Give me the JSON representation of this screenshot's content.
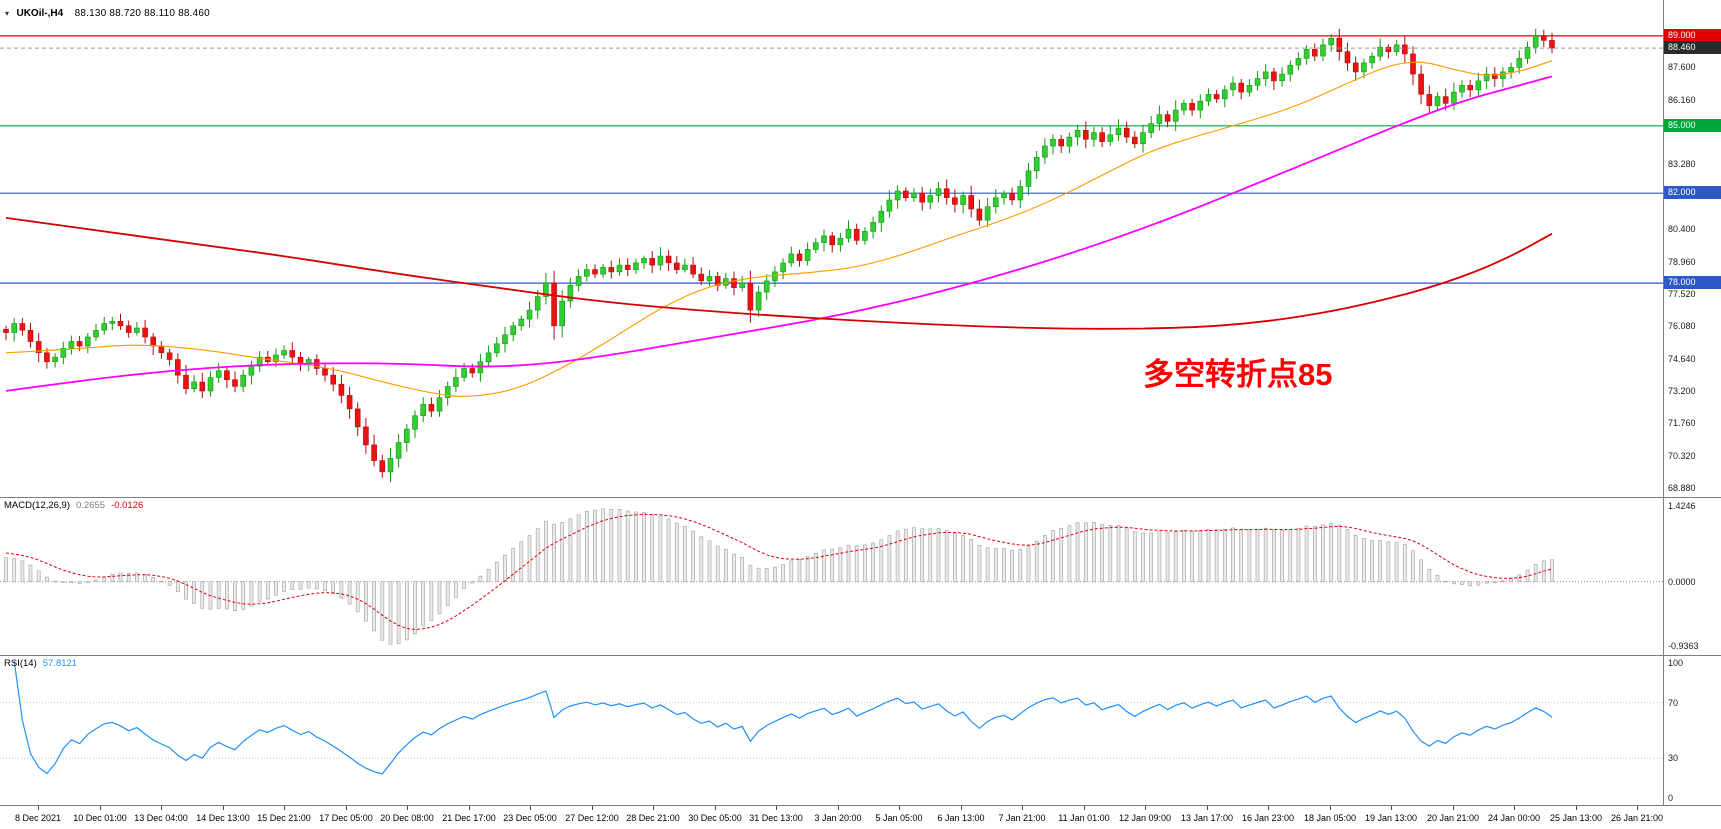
{
  "title_bar": {
    "symbol_period": "UKOil-,H4",
    "ohlc": "88.130 88.720 88.110 88.460"
  },
  "icons": {
    "dropdown": "▾"
  },
  "annotation": {
    "text": "多空转折点85",
    "color": "#ff0000"
  },
  "price_axis": {
    "ticks": [
      "87.600",
      "86.160",
      "83.280",
      "80.400",
      "78.960",
      "77.520",
      "76.080",
      "74.640",
      "73.200",
      "71.760",
      "70.320",
      "68.880"
    ],
    "badges": [
      {
        "label": "89.000",
        "value": 89.0,
        "color": "#e00000"
      },
      {
        "label": "88.460",
        "value": 88.46,
        "color": "#2b2b2b"
      },
      {
        "label": "85.000",
        "value": 85.0,
        "color": "#00a43b"
      },
      {
        "label": "82.000",
        "value": 82.0,
        "color": "#2e58c8"
      },
      {
        "label": "78.000",
        "value": 78.0,
        "color": "#2e58c8"
      }
    ]
  },
  "time_axis": {
    "labels": [
      "8 Dec 2021",
      "10 Dec 01:00",
      "13 Dec 04:00",
      "14 Dec 13:00",
      "15 Dec 21:00",
      "17 Dec 05:00",
      "20 Dec 08:00",
      "21 Dec 17:00",
      "23 Dec 05:00",
      "27 Dec 12:00",
      "28 Dec 21:00",
      "30 Dec 05:00",
      "31 Dec 13:00",
      "3 Jan 20:00",
      "5 Jan 05:00",
      "6 Jan 13:00",
      "7 Jan 21:00",
      "11 Jan 01:00",
      "12 Jan 09:00",
      "13 Jan 17:00",
      "16 Jan 23:00",
      "18 Jan 05:00",
      "19 Jan 13:00",
      "20 Jan 21:00",
      "24 Jan 00:00",
      "25 Jan 13:00",
      "26 Jan 21:00"
    ]
  },
  "macd_panel": {
    "label": "MACD(12,26,9)",
    "value_main": "0.2655",
    "value_signal": "-0.0126",
    "scale": [
      "1.4246",
      "0.0000",
      "-0.9363"
    ]
  },
  "rsi_panel": {
    "label": "RSI(14)",
    "value": "57.8121",
    "scale": [
      "100",
      "70",
      "30",
      "0"
    ]
  },
  "chart_data": {
    "type": "candlestick",
    "symbol": "UKOil-",
    "timeframe": "H4",
    "title": "UKOil-,H4 88.130 88.720 88.110 88.460",
    "price_range": {
      "min": 68.48,
      "max": 90.6
    },
    "last_price": 88.46,
    "closes": [
      75.8,
      76.2,
      75.9,
      75.4,
      74.9,
      74.5,
      74.7,
      75.1,
      75.4,
      75.2,
      75.6,
      75.9,
      76.2,
      76.3,
      76.1,
      75.8,
      76.0,
      75.6,
      75.2,
      74.9,
      74.6,
      73.9,
      73.3,
      73.6,
      73.2,
      73.8,
      74.1,
      73.7,
      73.4,
      73.9,
      74.3,
      74.7,
      74.5,
      74.8,
      75.0,
      74.7,
      74.4,
      74.6,
      74.2,
      73.9,
      73.5,
      73.0,
      72.4,
      71.6,
      70.8,
      70.1,
      69.6,
      70.2,
      70.9,
      71.5,
      72.1,
      72.6,
      72.3,
      72.9,
      73.4,
      73.8,
      74.2,
      74.0,
      74.5,
      74.9,
      75.3,
      75.7,
      76.1,
      76.4,
      76.8,
      77.4,
      78.0,
      76.1,
      77.2,
      77.9,
      78.3,
      78.6,
      78.4,
      78.7,
      78.5,
      78.8,
      78.6,
      78.9,
      79.1,
      78.8,
      79.2,
      78.9,
      78.6,
      78.8,
      78.4,
      78.1,
      78.3,
      77.9,
      78.2,
      77.8,
      78.0,
      76.8,
      77.6,
      78.1,
      78.5,
      78.9,
      79.3,
      79.0,
      79.5,
      79.8,
      80.1,
      79.7,
      80.0,
      80.4,
      79.9,
      80.3,
      80.7,
      81.2,
      81.7,
      82.1,
      81.8,
      82.0,
      81.6,
      81.9,
      82.2,
      81.8,
      81.5,
      81.9,
      81.3,
      80.8,
      81.4,
      81.8,
      82.0,
      81.7,
      82.3,
      83.0,
      83.6,
      84.1,
      84.4,
      84.1,
      84.5,
      84.8,
      84.4,
      84.7,
      84.3,
      84.6,
      84.9,
      84.5,
      84.2,
      84.7,
      85.1,
      85.5,
      85.2,
      85.7,
      86.0,
      85.7,
      86.1,
      86.4,
      86.2,
      86.6,
      86.9,
      86.5,
      86.8,
      87.1,
      87.4,
      87.0,
      87.3,
      87.7,
      88.0,
      88.4,
      88.1,
      88.6,
      88.9,
      88.3,
      87.8,
      87.4,
      87.8,
      88.1,
      88.5,
      88.3,
      88.6,
      88.2,
      87.3,
      86.4,
      85.9,
      86.3,
      86.0,
      86.5,
      86.8,
      86.6,
      87.0,
      87.3,
      87.1,
      87.4,
      87.6,
      88.0,
      88.5,
      89.0,
      88.8,
      88.46
    ],
    "hlines": [
      {
        "value": 89.0,
        "color": "#e00000"
      },
      {
        "value": 85.0,
        "color": "#00a43b"
      },
      {
        "value": 82.0,
        "color": "#2e58c8"
      },
      {
        "value": 78.0,
        "color": "#2e58c8"
      }
    ],
    "moving_averages": [
      {
        "name": "fast-ma",
        "color": "#ff9900",
        "width": 1.1,
        "points": [
          [
            0,
            74.9
          ],
          [
            8,
            75.05
          ],
          [
            16,
            75.3
          ],
          [
            24,
            75.05
          ],
          [
            32,
            74.6
          ],
          [
            40,
            74.2
          ],
          [
            46,
            73.6
          ],
          [
            52,
            73.1
          ],
          [
            56,
            72.9
          ],
          [
            62,
            73.2
          ],
          [
            68,
            74.2
          ],
          [
            74,
            75.5
          ],
          [
            80,
            76.9
          ],
          [
            86,
            77.9
          ],
          [
            92,
            78.3
          ],
          [
            98,
            78.45
          ],
          [
            104,
            78.7
          ],
          [
            110,
            79.3
          ],
          [
            116,
            80.1
          ],
          [
            122,
            80.8
          ],
          [
            128,
            81.7
          ],
          [
            134,
            82.8
          ],
          [
            140,
            83.9
          ],
          [
            146,
            84.6
          ],
          [
            152,
            85.2
          ],
          [
            158,
            85.9
          ],
          [
            164,
            86.9
          ],
          [
            169,
            87.7
          ],
          [
            173,
            87.9
          ],
          [
            177,
            87.5
          ],
          [
            181,
            87.2
          ],
          [
            185,
            87.4
          ],
          [
            189,
            87.9
          ]
        ]
      },
      {
        "name": "medium-ma",
        "color": "#ff00ff",
        "width": 1.8,
        "points": [
          [
            0,
            73.2
          ],
          [
            10,
            73.7
          ],
          [
            20,
            74.1
          ],
          [
            30,
            74.35
          ],
          [
            40,
            74.45
          ],
          [
            50,
            74.4
          ],
          [
            58,
            74.25
          ],
          [
            66,
            74.4
          ],
          [
            74,
            74.8
          ],
          [
            82,
            75.3
          ],
          [
            90,
            75.8
          ],
          [
            98,
            76.3
          ],
          [
            106,
            76.9
          ],
          [
            114,
            77.6
          ],
          [
            122,
            78.4
          ],
          [
            130,
            79.3
          ],
          [
            138,
            80.3
          ],
          [
            146,
            81.4
          ],
          [
            154,
            82.6
          ],
          [
            162,
            83.8
          ],
          [
            170,
            85.0
          ],
          [
            178,
            86.1
          ],
          [
            184,
            86.7
          ],
          [
            189,
            87.2
          ]
        ]
      },
      {
        "name": "slow-ma",
        "color": "#d40000",
        "width": 1.8,
        "points": [
          [
            0,
            80.9
          ],
          [
            12,
            80.3
          ],
          [
            24,
            79.7
          ],
          [
            36,
            79.1
          ],
          [
            48,
            78.4
          ],
          [
            60,
            77.8
          ],
          [
            72,
            77.2
          ],
          [
            84,
            76.8
          ],
          [
            96,
            76.5
          ],
          [
            108,
            76.25
          ],
          [
            120,
            76.05
          ],
          [
            132,
            75.95
          ],
          [
            144,
            76.0
          ],
          [
            152,
            76.2
          ],
          [
            160,
            76.6
          ],
          [
            168,
            77.2
          ],
          [
            176,
            78.0
          ],
          [
            183,
            79.0
          ],
          [
            189,
            80.2
          ]
        ]
      }
    ],
    "colors": {
      "up": "#33cc33",
      "up_stroke": "#0e9b0e",
      "down": "#ee1111",
      "down_stroke": "#b00a0a",
      "histogram_fill": "#ececec",
      "histogram_stroke": "#a8a8a8",
      "signal": "#e00000",
      "rsi": "#1e90ff",
      "last_price_line": "#999999"
    },
    "indicators": [
      {
        "name": "MACD",
        "fast": 12,
        "slow": 26,
        "signal": 9,
        "display_main": 0.2655,
        "display_signal": -0.0126,
        "scale_max": 1.4246,
        "scale_min": -0.9363
      },
      {
        "name": "RSI",
        "period": 14,
        "display_value": 57.8121,
        "levels": [
          70,
          30
        ]
      }
    ]
  }
}
